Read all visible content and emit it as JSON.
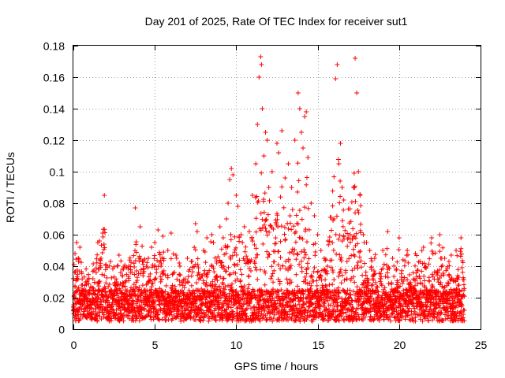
{
  "chart_data": {
    "type": "scatter",
    "title": "Day 201 of 2025, Rate Of TEC Index for receiver sut1",
    "xlabel": "GPS time / hours",
    "ylabel": "ROTI / TECUs",
    "xlim": [
      0,
      25
    ],
    "ylim": [
      0,
      0.18
    ],
    "xticks": [
      0,
      5,
      10,
      15,
      20,
      25
    ],
    "yticks": [
      0,
      0.02,
      0.04,
      0.06,
      0.08,
      0.1,
      0.12,
      0.14,
      0.16,
      0.18
    ],
    "xtick_labels": [
      "0",
      "5",
      "10",
      "15",
      "20",
      "25"
    ],
    "ytick_labels": [
      "0",
      "0.02",
      "0.04",
      "0.06",
      "0.08",
      "0.1",
      "0.12",
      "0.14",
      "0.16",
      "0.18"
    ],
    "grid": true,
    "marker": "+",
    "marker_color": "#ff0000",
    "series": [
      {
        "name": "ROTI",
        "points": [
          [
            0.0,
            0.014
          ],
          [
            0.1,
            0.048
          ],
          [
            0.2,
            0.055
          ],
          [
            0.3,
            0.045
          ],
          [
            0.4,
            0.052
          ],
          [
            0.5,
            0.028
          ],
          [
            0.7,
            0.021
          ],
          [
            1.0,
            0.025
          ],
          [
            1.2,
            0.032
          ],
          [
            1.4,
            0.036
          ],
          [
            1.5,
            0.055
          ],
          [
            1.6,
            0.056
          ],
          [
            1.7,
            0.045
          ],
          [
            1.8,
            0.061
          ],
          [
            1.9,
            0.085
          ],
          [
            2.2,
            0.024
          ],
          [
            2.6,
            0.028
          ],
          [
            2.8,
            0.047
          ],
          [
            3.0,
            0.038
          ],
          [
            3.2,
            0.03
          ],
          [
            3.4,
            0.04
          ],
          [
            3.6,
            0.036
          ],
          [
            3.8,
            0.077
          ],
          [
            4.1,
            0.065
          ],
          [
            4.3,
            0.038
          ],
          [
            4.6,
            0.045
          ],
          [
            4.8,
            0.052
          ],
          [
            5.0,
            0.055
          ],
          [
            5.2,
            0.063
          ],
          [
            5.5,
            0.059
          ],
          [
            5.8,
            0.05
          ],
          [
            6.0,
            0.061
          ],
          [
            6.3,
            0.047
          ],
          [
            6.5,
            0.042
          ],
          [
            7.0,
            0.045
          ],
          [
            7.5,
            0.067
          ],
          [
            7.6,
            0.062
          ],
          [
            8.0,
            0.05
          ],
          [
            8.2,
            0.058
          ],
          [
            8.5,
            0.06
          ],
          [
            8.6,
            0.055
          ],
          [
            9.0,
            0.065
          ],
          [
            9.2,
            0.058
          ],
          [
            9.4,
            0.07
          ],
          [
            9.5,
            0.08
          ],
          [
            9.6,
            0.095
          ],
          [
            9.7,
            0.102
          ],
          [
            9.8,
            0.098
          ],
          [
            10.0,
            0.085
          ],
          [
            10.1,
            0.078
          ],
          [
            10.3,
            0.06
          ],
          [
            10.5,
            0.065
          ],
          [
            10.8,
            0.062
          ],
          [
            11.0,
            0.085
          ],
          [
            11.2,
            0.105
          ],
          [
            11.3,
            0.13
          ],
          [
            11.4,
            0.16
          ],
          [
            11.5,
            0.173
          ],
          [
            11.55,
            0.168
          ],
          [
            11.6,
            0.14
          ],
          [
            11.7,
            0.11
          ],
          [
            11.8,
            0.125
          ],
          [
            11.9,
            0.12
          ],
          [
            12.0,
            0.09
          ],
          [
            12.2,
            0.1
          ],
          [
            12.5,
            0.118
          ],
          [
            12.6,
            0.112
          ],
          [
            12.8,
            0.126
          ],
          [
            13.0,
            0.096
          ],
          [
            13.2,
            0.105
          ],
          [
            13.4,
            0.09
          ],
          [
            13.6,
            0.12
          ],
          [
            13.8,
            0.15
          ],
          [
            13.9,
            0.14
          ],
          [
            14.0,
            0.125
          ],
          [
            14.1,
            0.115
          ],
          [
            14.2,
            0.135
          ],
          [
            14.3,
            0.138
          ],
          [
            14.4,
            0.109
          ],
          [
            14.6,
            0.08
          ],
          [
            14.8,
            0.072
          ],
          [
            15.0,
            0.06
          ],
          [
            15.2,
            0.05
          ],
          [
            15.4,
            0.045
          ],
          [
            15.6,
            0.04
          ],
          [
            15.9,
            0.055
          ],
          [
            16.0,
            0.07
          ],
          [
            16.1,
            0.159
          ],
          [
            16.2,
            0.168
          ],
          [
            16.3,
            0.105
          ],
          [
            16.4,
            0.118
          ],
          [
            16.5,
            0.09
          ],
          [
            16.6,
            0.082
          ],
          [
            17.0,
            0.06
          ],
          [
            17.2,
            0.09
          ],
          [
            17.3,
            0.172
          ],
          [
            17.4,
            0.15
          ],
          [
            17.5,
            0.1
          ],
          [
            17.6,
            0.085
          ],
          [
            17.8,
            0.06
          ],
          [
            18.0,
            0.055
          ],
          [
            18.2,
            0.05
          ],
          [
            18.5,
            0.045
          ],
          [
            19.0,
            0.05
          ],
          [
            19.3,
            0.062
          ],
          [
            19.6,
            0.045
          ],
          [
            20.0,
            0.058
          ],
          [
            20.5,
            0.05
          ],
          [
            21.0,
            0.048
          ],
          [
            21.5,
            0.052
          ],
          [
            22.0,
            0.058
          ],
          [
            22.5,
            0.06
          ],
          [
            22.8,
            0.045
          ],
          [
            23.2,
            0.047
          ],
          [
            23.5,
            0.05
          ],
          [
            23.8,
            0.058
          ],
          [
            24.0,
            0.012
          ]
        ]
      }
    ]
  }
}
